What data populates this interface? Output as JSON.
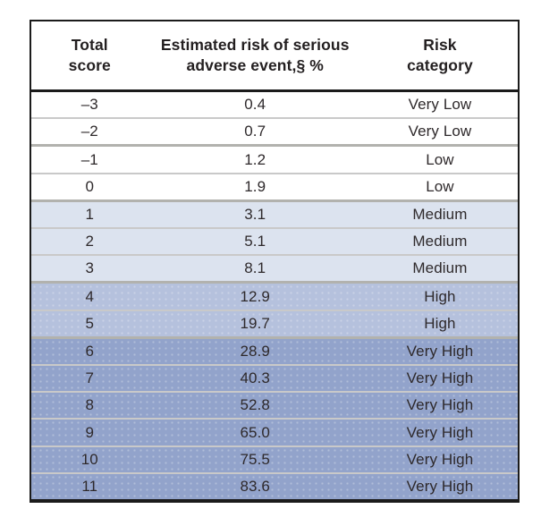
{
  "table": {
    "columns": [
      {
        "id": "total-score",
        "line1": "Total",
        "line2": "score"
      },
      {
        "id": "estimated-risk",
        "line1": "Estimated risk of serious",
        "line2": "adverse event,§ %"
      },
      {
        "id": "risk-category",
        "line1": "Risk",
        "line2": "category"
      }
    ],
    "rows": [
      {
        "score": "–3",
        "risk": "0.4",
        "category": "Very Low"
      },
      {
        "score": "–2",
        "risk": "0.7",
        "category": "Very Low"
      },
      {
        "score": "–1",
        "risk": "1.2",
        "category": "Low"
      },
      {
        "score": "0",
        "risk": "1.9",
        "category": "Low"
      },
      {
        "score": "1",
        "risk": "3.1",
        "category": "Medium"
      },
      {
        "score": "2",
        "risk": "5.1",
        "category": "Medium"
      },
      {
        "score": "3",
        "risk": "8.1",
        "category": "Medium"
      },
      {
        "score": "4",
        "risk": "12.9",
        "category": "High"
      },
      {
        "score": "5",
        "risk": "19.7",
        "category": "High"
      },
      {
        "score": "6",
        "risk": "28.9",
        "category": "Very High"
      },
      {
        "score": "7",
        "risk": "40.3",
        "category": "Very High"
      },
      {
        "score": "8",
        "risk": "52.8",
        "category": "Very High"
      },
      {
        "score": "9",
        "risk": "65.0",
        "category": "Very High"
      },
      {
        "score": "10",
        "risk": "75.5",
        "category": "Very High"
      },
      {
        "score": "11",
        "risk": "83.6",
        "category": "Very High"
      }
    ]
  },
  "chart_data": {
    "type": "table",
    "title": "",
    "columns": [
      "Total score",
      "Estimated risk of serious adverse event,§ %",
      "Risk category"
    ],
    "rows": [
      [
        -3,
        0.4,
        "Very Low"
      ],
      [
        -2,
        0.7,
        "Very Low"
      ],
      [
        -1,
        1.2,
        "Low"
      ],
      [
        0,
        1.9,
        "Low"
      ],
      [
        1,
        3.1,
        "Medium"
      ],
      [
        2,
        5.1,
        "Medium"
      ],
      [
        3,
        8.1,
        "Medium"
      ],
      [
        4,
        12.9,
        "High"
      ],
      [
        5,
        19.7,
        "High"
      ],
      [
        6,
        28.9,
        "Very High"
      ],
      [
        7,
        40.3,
        "Very High"
      ],
      [
        8,
        52.8,
        "Very High"
      ],
      [
        9,
        65.0,
        "Very High"
      ],
      [
        10,
        75.5,
        "Very High"
      ],
      [
        11,
        83.6,
        "Very High"
      ]
    ]
  },
  "colors": {
    "border": "#1b1b1b",
    "header_text": "#231f20",
    "cell_text": "#2e292b",
    "bands": {
      "very_low": "#ffffff",
      "low": "#ffffff",
      "medium": "#dce3ef",
      "high": "#b5c1dd",
      "very_high": "#92a3cb"
    },
    "separator_thin": "#c9c9c9",
    "separator_thick": "#b2b2ae"
  }
}
